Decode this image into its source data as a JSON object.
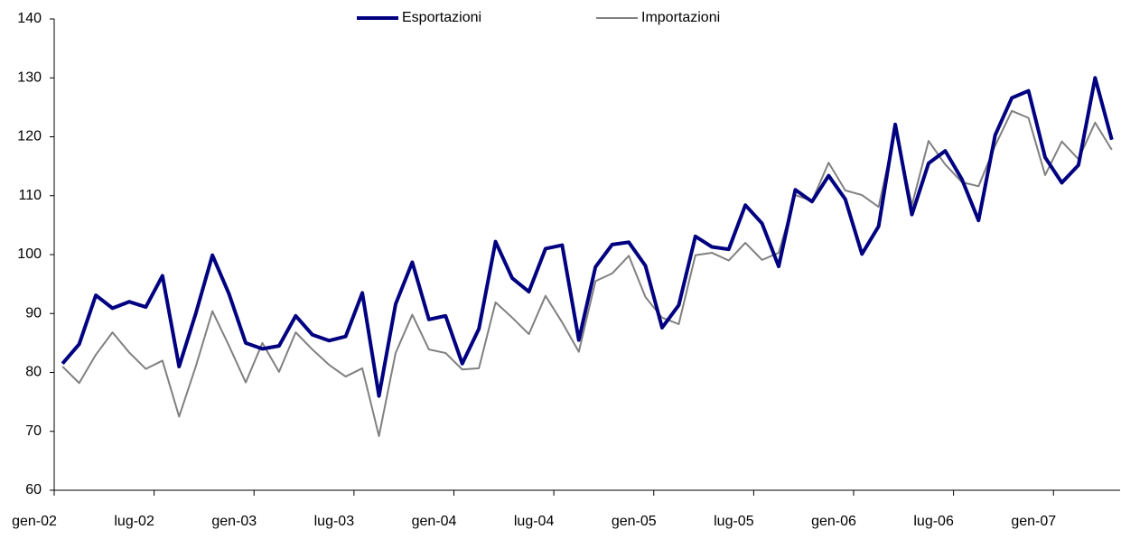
{
  "chart_data": {
    "type": "line",
    "categories": [
      "gen-02",
      null,
      null,
      null,
      null,
      null,
      "lug-02",
      null,
      null,
      null,
      null,
      null,
      "gen-03",
      null,
      null,
      null,
      null,
      null,
      "lug-03",
      null,
      null,
      null,
      null,
      null,
      "gen-04",
      null,
      null,
      null,
      null,
      null,
      "lug-04",
      null,
      null,
      null,
      null,
      null,
      "gen-05",
      null,
      null,
      null,
      null,
      null,
      "lug-05",
      null,
      null,
      null,
      null,
      null,
      "gen-06",
      null,
      null,
      null,
      null,
      null,
      "lug-06",
      null,
      null,
      null,
      null,
      null,
      "gen-07",
      null,
      null,
      null
    ],
    "series": [
      {
        "name": "Esportazioni",
        "color": "#000080",
        "values": [
          81.5,
          84.8,
          93.1,
          90.9,
          92.0,
          91.1,
          96.4,
          81.0,
          90.0,
          99.9,
          93.3,
          85.0,
          84.0,
          84.5,
          89.6,
          86.4,
          85.4,
          86.1,
          93.5,
          76.0,
          91.6,
          98.7,
          89.0,
          89.6,
          81.5,
          87.4,
          102.2,
          96.0,
          93.7,
          101.0,
          101.6,
          85.5,
          97.9,
          101.7,
          102.1,
          98.1,
          87.6,
          91.4,
          103.1,
          101.3,
          100.9,
          108.4,
          105.3,
          98.0,
          111.0,
          109.0,
          113.4,
          109.4,
          100.1,
          104.8,
          122.1,
          106.8,
          115.5,
          117.6,
          112.8,
          105.8,
          120.3,
          126.6,
          127.8,
          116.5,
          112.2,
          115.2,
          130.0,
          119.5
        ]
      },
      {
        "name": "Importazioni",
        "color": "#808080",
        "values": [
          81.0,
          78.2,
          83.0,
          86.8,
          83.4,
          80.6,
          82.0,
          72.5,
          81.0,
          90.4,
          84.5,
          78.3,
          85.0,
          80.1,
          86.8,
          83.9,
          81.3,
          79.3,
          80.7,
          69.2,
          83.3,
          89.8,
          83.9,
          83.3,
          80.5,
          80.7,
          91.9,
          89.3,
          86.5,
          93.0,
          88.5,
          83.5,
          95.5,
          96.8,
          99.8,
          92.8,
          89.3,
          88.2,
          99.9,
          100.3,
          99.0,
          102.0,
          99.1,
          100.3,
          110.1,
          109.1,
          115.6,
          110.9,
          110.1,
          108.1,
          121.1,
          108.4,
          119.3,
          115.3,
          112.3,
          111.6,
          118.5,
          124.4,
          123.2,
          113.5,
          119.2,
          116.2,
          122.4,
          117.8
        ]
      }
    ],
    "ylim": [
      60,
      140
    ],
    "yticks": [
      60,
      70,
      80,
      90,
      100,
      110,
      120,
      130,
      140
    ],
    "grid": false,
    "legend": "top"
  }
}
